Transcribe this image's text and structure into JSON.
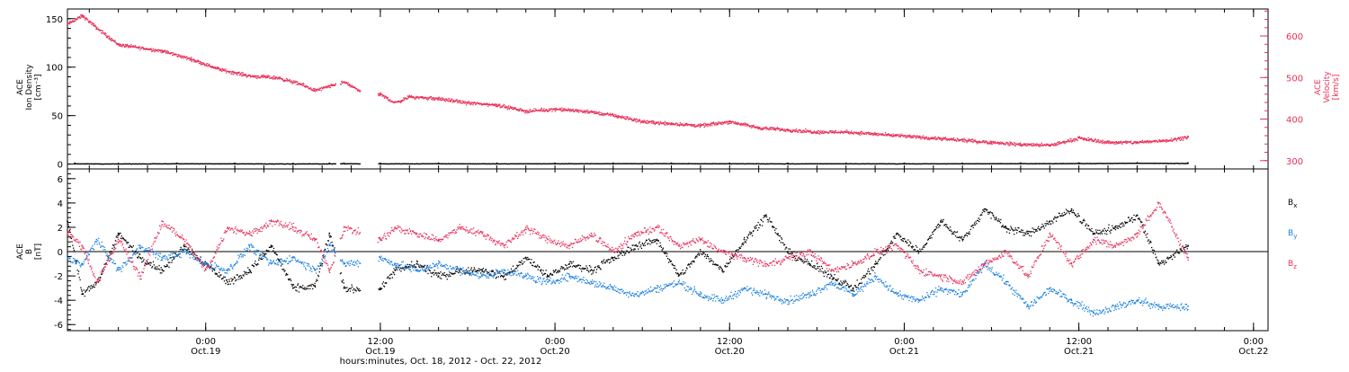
{
  "time_axis": {
    "label": "hours:minutes, Oct. 18, 2012 - Oct. 22, 2012",
    "ticks": [
      {
        "hour": 6,
        "time": "0:00",
        "date": "Oct.19"
      },
      {
        "hour": 18,
        "time": "12:00",
        "date": "Oct.19"
      },
      {
        "hour": 30,
        "time": "0:00",
        "date": "Oct.20"
      },
      {
        "hour": 42,
        "time": "12:00",
        "date": "Oct.20"
      },
      {
        "hour": 54,
        "time": "0:00",
        "date": "Oct.21"
      },
      {
        "hour": 66,
        "time": "12:00",
        "date": "Oct.21"
      },
      {
        "hour": 78,
        "time": "0:00",
        "date": "Oct.22"
      }
    ]
  },
  "colors": {
    "black": "#000000",
    "red": "#e8305a",
    "blue": "#1a7fe0"
  },
  "chart_data": [
    {
      "type": "scatter",
      "name": "plasma-panel",
      "ylabel_lines": [
        "ACE",
        "Ion Density",
        "[cm⁻³]"
      ],
      "ylim": [
        -5,
        160
      ],
      "yticks": [
        0,
        50,
        100,
        150
      ],
      "y2label_lines": [
        "ACE",
        "Velocity",
        "[km/s]"
      ],
      "y2lim": [
        280,
        665
      ],
      "y2ticks": [
        300,
        400,
        500,
        600
      ],
      "xlim_hours": [
        -3.5,
        79
      ],
      "series": [
        {
          "axis": "left",
          "color": "#000000",
          "x": [
            -3,
            0,
            4,
            8,
            12,
            14.5,
            15.5,
            18,
            22,
            26,
            30,
            34,
            38,
            42,
            46,
            50,
            54,
            58,
            62,
            66,
            70,
            73.5
          ],
          "y": [
            0.8,
            0.7,
            0.9,
            0.8,
            0.7,
            0.8,
            0.9,
            0.8,
            0.9,
            0.8,
            0.9,
            1.0,
            1.0,
            0.9,
            0.8,
            0.9,
            0.8,
            0.9,
            1.0,
            1.1,
            1.4,
            1.2
          ]
        },
        {
          "axis": "right",
          "color": "#e8305a",
          "x": [
            -3.5,
            -2.5,
            -1.5,
            0,
            1,
            3,
            5,
            7,
            9,
            11,
            12.5,
            13.5,
            14.5,
            15.5,
            16.5,
            18,
            19,
            20,
            22,
            24,
            26,
            28,
            30,
            32,
            34,
            36,
            38,
            40,
            42,
            44,
            46,
            48,
            50,
            52,
            54,
            56,
            58,
            60,
            62,
            64,
            66,
            68,
            70,
            72,
            73.5
          ],
          "y": [
            630,
            650,
            620,
            580,
            575,
            565,
            545,
            520,
            505,
            500,
            485,
            470,
            480,
            490,
            470,
            460,
            440,
            455,
            450,
            440,
            435,
            420,
            425,
            420,
            410,
            395,
            390,
            385,
            395,
            380,
            375,
            370,
            370,
            365,
            360,
            355,
            350,
            345,
            340,
            338,
            355,
            345,
            345,
            350,
            358
          ]
        }
      ]
    },
    {
      "type": "scatter",
      "name": "magnetic-panel",
      "ylabel_lines": [
        "ACE",
        "B",
        "[nT]"
      ],
      "ylim": [
        -6.5,
        6.8
      ],
      "yticks": [
        -6,
        -4,
        -2,
        0,
        2,
        4,
        6
      ],
      "zero_line": 0,
      "xlim_hours": [
        -3.5,
        79
      ],
      "legend": [
        "Bx",
        "By",
        "Bz"
      ],
      "series": [
        {
          "name": "Bx",
          "color": "#000000",
          "x": [
            -3.5,
            -2.5,
            -1.5,
            0,
            1.5,
            3,
            4.5,
            6,
            7.5,
            9,
            10.5,
            12,
            13.5,
            14.5,
            15.5,
            18,
            19,
            20.5,
            22,
            23.5,
            25,
            26.5,
            28,
            29.5,
            31,
            32.5,
            34,
            35.5,
            37,
            38.5,
            40,
            41.5,
            43,
            44.5,
            46,
            47.5,
            49,
            50.5,
            52,
            53.5,
            55,
            56.5,
            58,
            59.5,
            61,
            62.5,
            64,
            65.5,
            67,
            68.5,
            70,
            71.5,
            73.5
          ],
          "y": [
            2.5,
            -3.5,
            -2.5,
            1.5,
            -0.5,
            -1.5,
            0.5,
            -1.0,
            -2.5,
            -1.5,
            0.5,
            -3.0,
            -2.8,
            1.5,
            -3.0,
            -3.0,
            -1.5,
            -1.0,
            -2.0,
            -1.5,
            -1.5,
            -2.0,
            -0.5,
            -2.0,
            -1.0,
            -1.5,
            -0.5,
            0.5,
            1.0,
            -2.0,
            0.0,
            -1.5,
            1.0,
            3.0,
            0.0,
            -1.0,
            -2.0,
            -3.0,
            -1.0,
            1.5,
            0.0,
            2.5,
            1.0,
            3.5,
            2.0,
            1.5,
            2.5,
            3.5,
            1.5,
            2.0,
            3.0,
            -1.0,
            0.5
          ]
        },
        {
          "name": "By",
          "color": "#1a7fe0",
          "x": [
            -3.5,
            -2.5,
            -1.5,
            0,
            1.5,
            3,
            4.5,
            6,
            7.5,
            9,
            10.5,
            12,
            13.5,
            14.5,
            15.5,
            18,
            19,
            20.5,
            22,
            23.5,
            25,
            26.5,
            28,
            29.5,
            31,
            32.5,
            34,
            35.5,
            37,
            38.5,
            40,
            41.5,
            43,
            44.5,
            46,
            47.5,
            49,
            50.5,
            52,
            53.5,
            55,
            56.5,
            58,
            59.5,
            61,
            62.5,
            64,
            65.5,
            67,
            68.5,
            70,
            71.5,
            73.5
          ],
          "y": [
            -0.5,
            -1.0,
            1.0,
            -1.5,
            0.5,
            -0.5,
            0.0,
            -1.0,
            -1.5,
            0.5,
            -1.0,
            -0.5,
            -1.5,
            0.5,
            -1.0,
            -0.5,
            -1.0,
            -1.5,
            -1.0,
            -1.5,
            -2.0,
            -1.5,
            -2.0,
            -2.5,
            -2.0,
            -2.5,
            -3.0,
            -3.5,
            -3.0,
            -2.5,
            -3.5,
            -4.0,
            -3.0,
            -3.5,
            -4.0,
            -3.5,
            -2.5,
            -3.5,
            -2.0,
            -3.5,
            -4.0,
            -3.0,
            -3.5,
            -1.0,
            -2.5,
            -4.5,
            -3.0,
            -4.0,
            -5.0,
            -4.5,
            -4.0,
            -4.5,
            -4.5
          ]
        },
        {
          "name": "Bz",
          "color": "#e8305a",
          "x": [
            -3.5,
            -2.5,
            -1.5,
            0,
            1.5,
            3,
            4.5,
            6,
            7.5,
            9,
            10.5,
            12,
            13.5,
            14.5,
            15.5,
            18,
            19,
            20.5,
            22,
            23.5,
            25,
            26.5,
            28,
            29.5,
            31,
            32.5,
            34,
            35.5,
            37,
            38.5,
            40,
            41.5,
            43,
            44.5,
            46,
            47.5,
            49,
            50.5,
            52,
            53.5,
            55,
            56.5,
            58,
            59.5,
            61,
            62.5,
            64,
            65.5,
            67,
            68.5,
            70,
            71.5,
            73.5
          ],
          "y": [
            1.5,
            0.5,
            -2.5,
            1.0,
            -2.0,
            2.5,
            1.0,
            -1.5,
            2.0,
            1.5,
            2.5,
            2.0,
            1.0,
            -1.5,
            2.0,
            1.0,
            2.0,
            1.5,
            1.0,
            2.0,
            1.5,
            0.5,
            2.0,
            1.0,
            0.5,
            1.5,
            0.0,
            1.5,
            2.0,
            0.5,
            1.0,
            0.0,
            -0.5,
            -1.0,
            -0.5,
            0.0,
            -1.5,
            -1.0,
            0.0,
            0.5,
            -1.5,
            -2.0,
            -2.5,
            -1.0,
            0.0,
            -2.0,
            1.5,
            -1.0,
            1.0,
            0.5,
            1.5,
            4.0,
            -0.5
          ]
        }
      ]
    }
  ]
}
